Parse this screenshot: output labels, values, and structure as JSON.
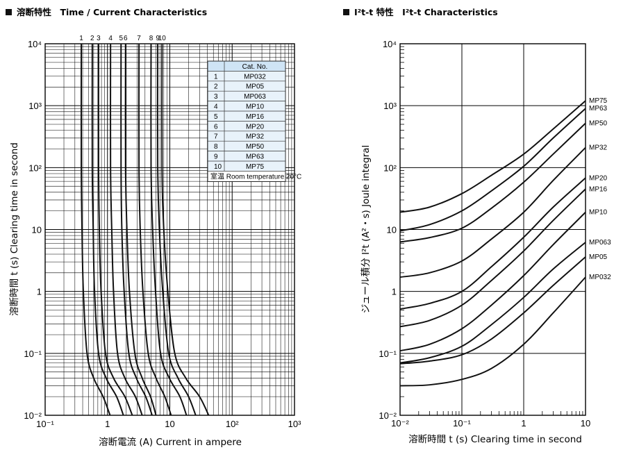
{
  "chart_data": [
    {
      "type": "line",
      "title": "溶断特性　Time / Current Characteristics",
      "xlabel": "溶断電流 (A)  Current in ampere",
      "ylabel": "溶断時間 t (s)  Clearing time in second",
      "x_scale": "log",
      "y_scale": "log",
      "xlim": [
        0.1,
        1000
      ],
      "ylim": [
        0.01,
        10000
      ],
      "x_tick_labels": [
        "10⁻¹",
        "1",
        "10",
        "10²",
        "10³"
      ],
      "y_tick_labels": [
        "10⁻²",
        "10⁻¹",
        "1",
        "10",
        "10²",
        "10³",
        "10⁴"
      ],
      "grid": true,
      "curve_top_labels": [
        "1",
        "2",
        "3",
        "4",
        "5",
        "6",
        "7",
        "8",
        "9",
        "10"
      ],
      "legend": {
        "header_no": "",
        "header_cat": "Cat. No.",
        "rows": [
          {
            "no": "1",
            "cat": "MP032"
          },
          {
            "no": "2",
            "cat": "MP05"
          },
          {
            "no": "3",
            "cat": "MP063"
          },
          {
            "no": "4",
            "cat": "MP10"
          },
          {
            "no": "5",
            "cat": "MP16"
          },
          {
            "no": "6",
            "cat": "MP20"
          },
          {
            "no": "7",
            "cat": "MP32"
          },
          {
            "no": "8",
            "cat": "MP50"
          },
          {
            "no": "9",
            "cat": "MP63"
          },
          {
            "no": "10",
            "cat": "MP75"
          }
        ],
        "footnote": "室温  Room temperature 20°C",
        "placement": "top-right"
      },
      "series": [
        {
          "name": "1",
          "x": [
            0.38,
            0.38,
            0.39,
            0.41,
            0.47,
            0.6,
            0.85,
            1.1
          ],
          "y": [
            10000,
            100,
            10,
            1,
            0.1,
            0.04,
            0.02,
            0.01
          ]
        },
        {
          "name": "2",
          "x": [
            0.57,
            0.57,
            0.59,
            0.62,
            0.72,
            0.95,
            1.4,
            1.8
          ],
          "y": [
            10000,
            100,
            10,
            1,
            0.1,
            0.04,
            0.02,
            0.01
          ]
        },
        {
          "name": "3",
          "x": [
            0.72,
            0.72,
            0.74,
            0.79,
            0.93,
            1.25,
            1.9,
            2.5
          ],
          "y": [
            10000,
            100,
            10,
            1,
            0.1,
            0.04,
            0.02,
            0.01
          ]
        },
        {
          "name": "4",
          "x": [
            1.12,
            1.12,
            1.17,
            1.25,
            1.45,
            1.9,
            2.8,
            3.6
          ],
          "y": [
            10000,
            100,
            10,
            1,
            0.1,
            0.04,
            0.02,
            0.01
          ]
        },
        {
          "name": "5",
          "x": [
            1.65,
            1.65,
            1.7,
            1.85,
            2.2,
            2.9,
            4.1,
            5.2
          ],
          "y": [
            10000,
            100,
            10,
            1,
            0.1,
            0.04,
            0.02,
            0.01
          ]
        },
        {
          "name": "6",
          "x": [
            1.95,
            1.95,
            2.05,
            2.25,
            2.75,
            3.6,
            4.9,
            6.0
          ],
          "y": [
            10000,
            100,
            10,
            1,
            0.1,
            0.04,
            0.02,
            0.01
          ]
        },
        {
          "name": "7",
          "x": [
            3.2,
            3.2,
            3.35,
            3.7,
            4.5,
            6.0,
            8.3,
            10.5
          ],
          "y": [
            10000,
            100,
            10,
            1,
            0.1,
            0.04,
            0.02,
            0.01
          ]
        },
        {
          "name": "8",
          "x": [
            5.0,
            5.0,
            5.3,
            5.9,
            7.1,
            9.8,
            14.5,
            18.5
          ],
          "y": [
            10000,
            100,
            10,
            1,
            0.1,
            0.04,
            0.02,
            0.01
          ]
        },
        {
          "name": "9",
          "x": [
            6.4,
            6.4,
            6.8,
            7.7,
            9.6,
            13.5,
            20.0,
            26.0
          ],
          "y": [
            10000,
            100,
            10,
            1,
            0.1,
            0.04,
            0.02,
            0.01
          ]
        },
        {
          "name": "10",
          "x": [
            7.5,
            7.5,
            8.0,
            9.3,
            12.0,
            18.0,
            30.0,
            42.0
          ],
          "y": [
            10000,
            100,
            10,
            1,
            0.1,
            0.04,
            0.02,
            0.01
          ]
        }
      ]
    },
    {
      "type": "line",
      "title": "I²t-t 特性　I²t-t Characteristics",
      "xlabel": "溶断時間 t (s)  Clearing time in second",
      "ylabel": "ジュール積分 I²t (A²・s) Joule integral",
      "x_scale": "log",
      "y_scale": "log",
      "xlim": [
        0.01,
        10
      ],
      "ylim": [
        0.01,
        10000
      ],
      "x_tick_labels": [
        "10⁻²",
        "10⁻¹",
        "1",
        "10"
      ],
      "y_tick_labels": [
        "10⁻²",
        "10⁻¹",
        "1",
        "10",
        "10²",
        "10³",
        "10⁴"
      ],
      "grid": true,
      "series": [
        {
          "name": "MP75",
          "x": [
            0.01,
            0.03,
            0.1,
            0.3,
            1,
            3,
            10
          ],
          "y": [
            19,
            23,
            38,
            75,
            165,
            420,
            1200
          ]
        },
        {
          "name": "MP63",
          "x": [
            0.01,
            0.03,
            0.1,
            0.3,
            1,
            3,
            10
          ],
          "y": [
            9.5,
            12,
            20,
            42,
            105,
            300,
            900
          ]
        },
        {
          "name": "MP50",
          "x": [
            0.01,
            0.03,
            0.1,
            0.3,
            1,
            3,
            10
          ],
          "y": [
            6.3,
            7.4,
            10.5,
            22,
            58,
            165,
            520
          ]
        },
        {
          "name": "MP32",
          "x": [
            0.01,
            0.03,
            0.1,
            0.3,
            1,
            3,
            10
          ],
          "y": [
            1.7,
            2.0,
            3.1,
            7.0,
            19,
            62,
            210
          ]
        },
        {
          "name": "MP20",
          "x": [
            0.01,
            0.03,
            0.1,
            0.3,
            1,
            3,
            10
          ],
          "y": [
            0.52,
            0.64,
            1.0,
            2.5,
            7.5,
            23,
            68
          ]
        },
        {
          "name": "MP16",
          "x": [
            0.01,
            0.03,
            0.1,
            0.3,
            1,
            3,
            10
          ],
          "y": [
            0.27,
            0.34,
            0.6,
            1.5,
            4.5,
            14,
            45
          ]
        },
        {
          "name": "MP10",
          "x": [
            0.01,
            0.03,
            0.1,
            0.3,
            1,
            3,
            10
          ],
          "y": [
            0.11,
            0.14,
            0.25,
            0.6,
            1.8,
            5.7,
            19
          ]
        },
        {
          "name": "MP063",
          "x": [
            0.01,
            0.03,
            0.1,
            0.3,
            1,
            3,
            10
          ],
          "y": [
            0.07,
            0.085,
            0.13,
            0.29,
            0.8,
            2.3,
            6.2
          ]
        },
        {
          "name": "MP05",
          "x": [
            0.01,
            0.03,
            0.1,
            0.3,
            1,
            3,
            10
          ],
          "y": [
            0.068,
            0.075,
            0.095,
            0.17,
            0.45,
            1.25,
            3.6
          ]
        },
        {
          "name": "MP032",
          "x": [
            0.01,
            0.03,
            0.1,
            0.3,
            1,
            3,
            10
          ],
          "y": [
            0.03,
            0.031,
            0.038,
            0.057,
            0.14,
            0.45,
            1.7
          ]
        }
      ]
    }
  ]
}
